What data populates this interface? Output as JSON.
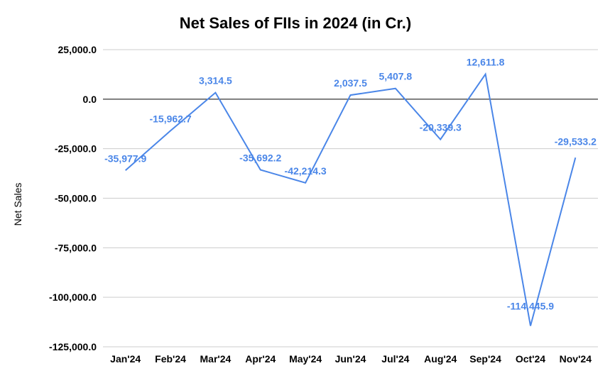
{
  "chart_data": {
    "type": "line",
    "title": "Net Sales of FIIs in 2024 (in Cr.)",
    "xlabel": "",
    "ylabel": "Net Sales",
    "categories": [
      "Jan'24",
      "Feb'24",
      "Mar'24",
      "Apr'24",
      "May'24",
      "Jun'24",
      "Jul'24",
      "Aug'24",
      "Sep'24",
      "Oct'24",
      "Nov'24"
    ],
    "series": [
      {
        "values": [
          -35977.9,
          -15962.7,
          3314.5,
          -35692.2,
          -42214.3,
          2037.5,
          5407.8,
          -20339.3,
          12611.8,
          -114445.9,
          -29533.2
        ],
        "data_labels": [
          "-35,977.9",
          "-15,962.7",
          "3,314.5",
          "-35,692.2",
          "-42,214.3",
          "2,037.5",
          "5,407.8",
          "-20,339.3",
          "12,611.8",
          "-114,445.9",
          "-29,533.2"
        ]
      }
    ],
    "ylim": [
      -125000,
      25000
    ],
    "yticks": [
      25000,
      0,
      -25000,
      -50000,
      -75000,
      -100000,
      -125000
    ],
    "ytick_labels": [
      "25,000.0",
      "0.0",
      "-25,000.0",
      "-50,000.0",
      "-75,000.0",
      "-100,000.0",
      "-125,000.0"
    ],
    "grid": true,
    "legend": "none",
    "colors": {
      "line": "#4a86e8",
      "label": "#4a86e8",
      "grid": "#cccccc",
      "zero_line": "#000000"
    }
  }
}
